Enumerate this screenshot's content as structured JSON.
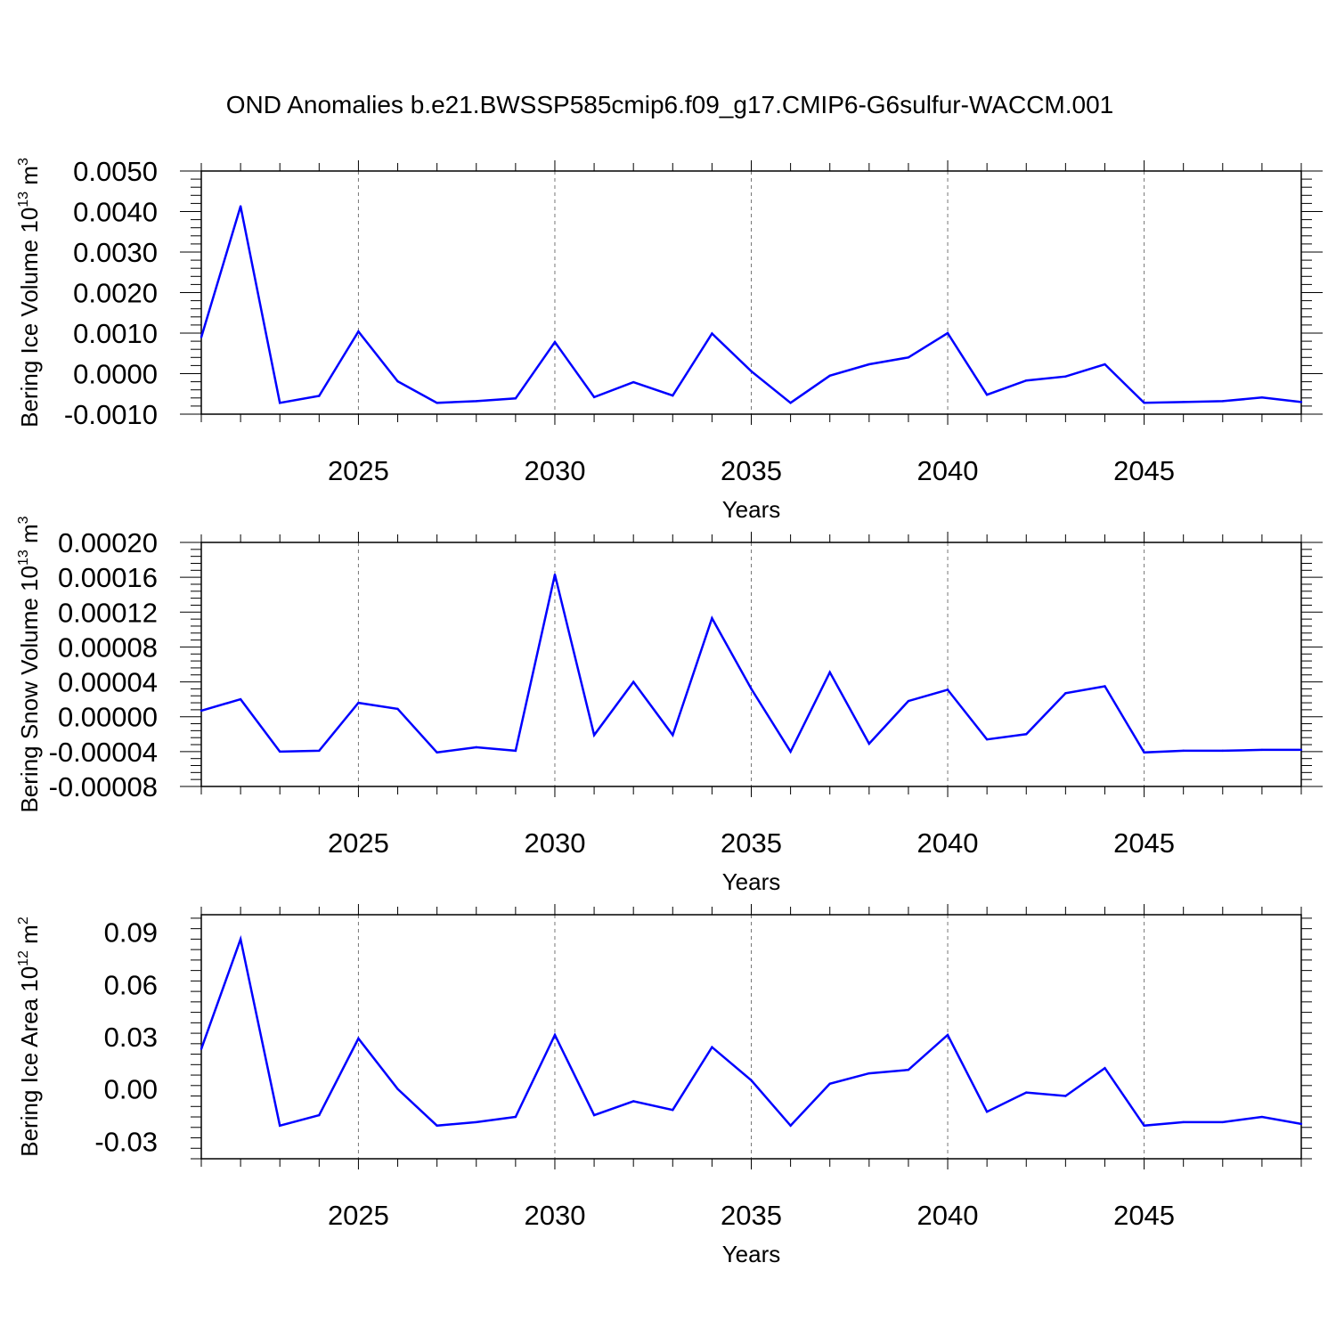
{
  "title": "OND Anomalies b.e21.BWSSP585cmip6.f09_g17.CMIP6-G6sulfur-WACCM.001",
  "line_color": "#0000ff",
  "chart_data": [
    {
      "type": "line",
      "xlabel": "Years",
      "ylabel": {
        "prefix": "Bering Ice Volume 10",
        "exponent": "13",
        "unit": " m",
        "unit_exponent": "3"
      },
      "xlim": [
        2021,
        2049
      ],
      "ylim": [
        -0.001,
        0.005
      ],
      "xticks": [
        2025,
        2030,
        2035,
        2040,
        2045
      ],
      "xtick_labels": [
        "2025",
        "2030",
        "2035",
        "2040",
        "2045"
      ],
      "yticks": [
        -0.001,
        0.0,
        0.001,
        0.002,
        0.003,
        0.004,
        0.005
      ],
      "ytick_labels": [
        "-0.0010",
        "0.0000",
        "0.0010",
        "0.0020",
        "0.0030",
        "0.0040",
        "0.0050"
      ],
      "grid": "vertical dashed",
      "x": [
        2021,
        2022,
        2023,
        2024,
        2025,
        2026,
        2027,
        2028,
        2029,
        2030,
        2031,
        2032,
        2033,
        2034,
        2035,
        2036,
        2037,
        2038,
        2039,
        2040,
        2041,
        2042,
        2043,
        2044,
        2045,
        2046,
        2047,
        2048,
        2049
      ],
      "values": [
        0.0009,
        0.00413,
        -0.00072,
        -0.00055,
        0.00104,
        -0.00019,
        -0.00072,
        -0.00068,
        -0.00061,
        0.00078,
        -0.00058,
        -0.00021,
        -0.00054,
        0.00099,
        6e-05,
        -0.00072,
        -5e-05,
        0.00023,
        0.0004,
        0.001,
        -0.00052,
        -0.00017,
        -7e-05,
        0.00023,
        -0.00072,
        -0.0007,
        -0.00068,
        -0.00059,
        -0.0007
      ]
    },
    {
      "type": "line",
      "xlabel": "Years",
      "ylabel": {
        "prefix": "Bering Snow Volume 10",
        "exponent": "13",
        "unit": " m",
        "unit_exponent": "3"
      },
      "xlim": [
        2021,
        2049
      ],
      "ylim": [
        -8e-05,
        0.0002
      ],
      "xticks": [
        2025,
        2030,
        2035,
        2040,
        2045
      ],
      "xtick_labels": [
        "2025",
        "2030",
        "2035",
        "2040",
        "2045"
      ],
      "yticks": [
        -8e-05,
        -4e-05,
        0.0,
        4e-05,
        8e-05,
        0.00012,
        0.00016,
        0.0002
      ],
      "ytick_labels": [
        "-0.00008",
        "-0.00004",
        "0.00000",
        "0.00004",
        "0.00008",
        "0.00012",
        "0.00016",
        "0.00020"
      ],
      "grid": "vertical dashed",
      "x": [
        2021,
        2022,
        2023,
        2024,
        2025,
        2026,
        2027,
        2028,
        2029,
        2030,
        2031,
        2032,
        2033,
        2034,
        2035,
        2036,
        2037,
        2038,
        2039,
        2040,
        2041,
        2042,
        2043,
        2044,
        2045,
        2046,
        2047,
        2048,
        2049
      ],
      "values": [
        7e-06,
        2e-05,
        -4e-05,
        -3.9e-05,
        1.6e-05,
        9e-06,
        -4.1e-05,
        -3.5e-05,
        -3.9e-05,
        0.000163,
        -2.1e-05,
        4e-05,
        -2.1e-05,
        0.000113,
        3.2e-05,
        -4e-05,
        5.1e-05,
        -3.1e-05,
        1.8e-05,
        3.1e-05,
        -2.6e-05,
        -2e-05,
        2.7e-05,
        3.5e-05,
        -4.1e-05,
        -3.9e-05,
        -3.9e-05,
        -3.8e-05,
        -3.8e-05
      ]
    },
    {
      "type": "line",
      "xlabel": "Years",
      "ylabel": {
        "prefix": "Bering Ice Area 10",
        "exponent": "12",
        "unit": " m",
        "unit_exponent": "2"
      },
      "xlim": [
        2021,
        2049
      ],
      "ylim": [
        -0.04,
        0.1
      ],
      "xticks": [
        2025,
        2030,
        2035,
        2040,
        2045
      ],
      "xtick_labels": [
        "2025",
        "2030",
        "2035",
        "2040",
        "2045"
      ],
      "yticks": [
        -0.03,
        0.0,
        0.03,
        0.06,
        0.09
      ],
      "ytick_labels": [
        "-0.03",
        "0.00",
        "0.03",
        "0.06",
        "0.09"
      ],
      "grid": "vertical dashed",
      "x": [
        2021,
        2022,
        2023,
        2024,
        2025,
        2026,
        2027,
        2028,
        2029,
        2030,
        2031,
        2032,
        2033,
        2034,
        2035,
        2036,
        2037,
        2038,
        2039,
        2040,
        2041,
        2042,
        2043,
        2044,
        2045,
        2046,
        2047,
        2048,
        2049
      ],
      "values": [
        0.023,
        0.086,
        -0.021,
        -0.015,
        0.029,
        0.0,
        -0.021,
        -0.019,
        -0.016,
        0.031,
        -0.015,
        -0.007,
        -0.012,
        0.024,
        0.005,
        -0.021,
        0.003,
        0.009,
        0.011,
        0.031,
        -0.013,
        -0.002,
        -0.004,
        0.012,
        -0.021,
        -0.019,
        -0.019,
        -0.016,
        -0.02
      ]
    }
  ]
}
